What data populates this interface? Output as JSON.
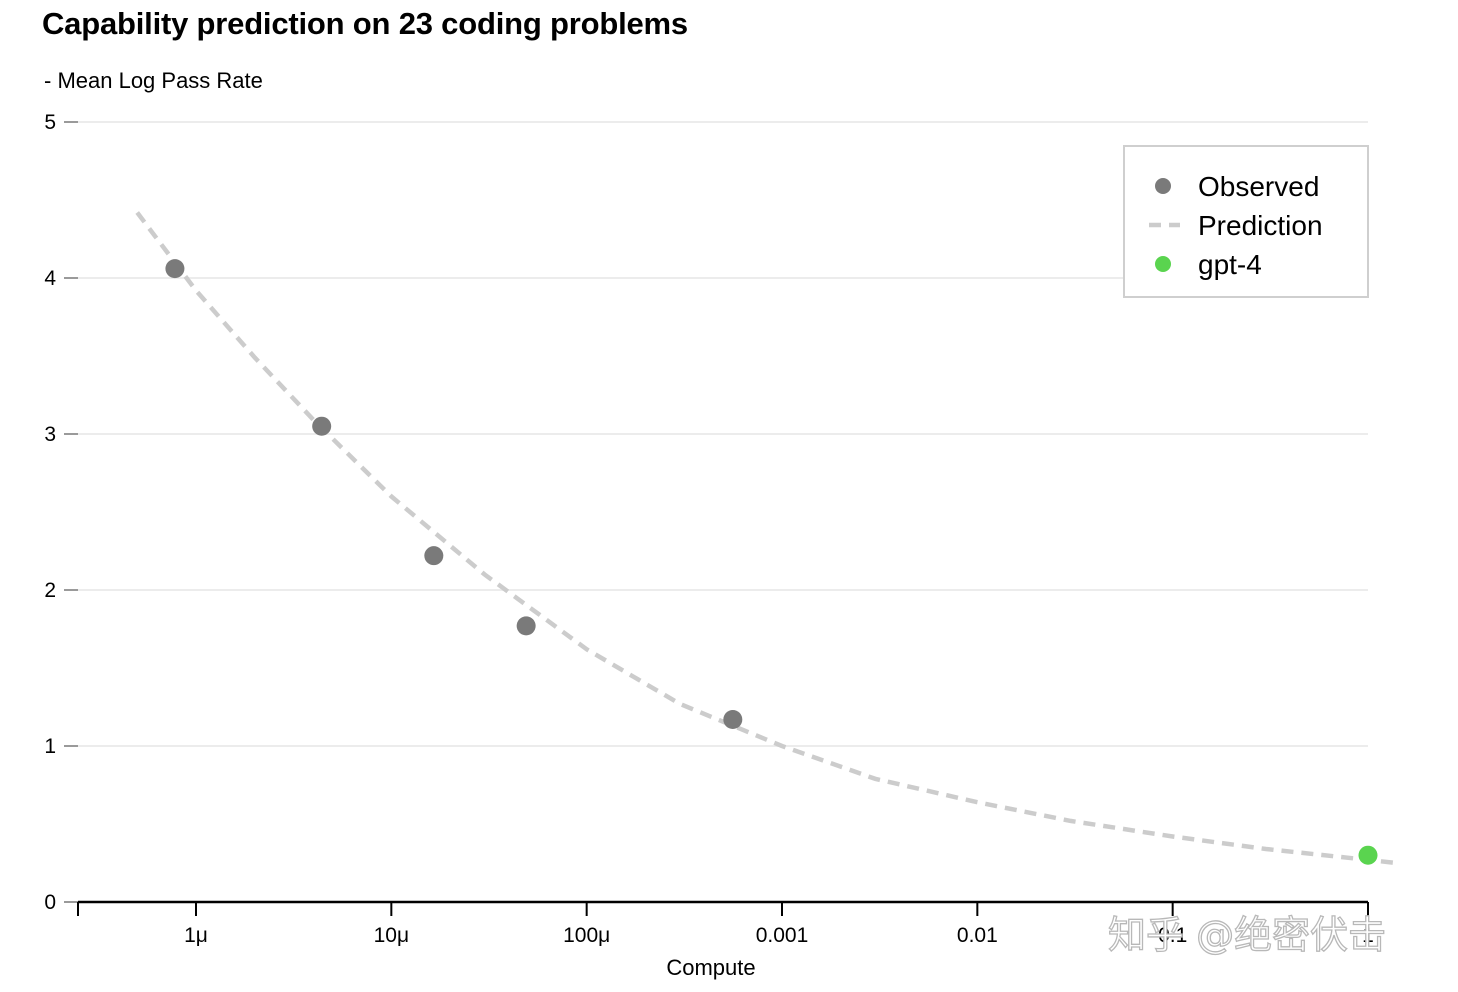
{
  "chart_data": {
    "type": "scatter",
    "title": "Capability prediction on 23 coding problems",
    "ylabel": "- Mean Log Pass Rate",
    "xlabel": "Compute",
    "x_scale": "log",
    "xlim": [
      5e-07,
      1.5
    ],
    "ylim": [
      0,
      5
    ],
    "grid": true,
    "legend_position": "top-right",
    "y_ticks": [
      "0",
      "1",
      "2",
      "3",
      "4",
      "5"
    ],
    "x_ticks": [
      {
        "value": 1e-06,
        "label": "1μ"
      },
      {
        "value": 1e-05,
        "label": "10μ"
      },
      {
        "value": 0.0001,
        "label": "100μ"
      },
      {
        "value": 0.001,
        "label": "0.001"
      },
      {
        "value": 0.01,
        "label": "0.01"
      },
      {
        "value": 0.1,
        "label": "0.1"
      },
      {
        "value": 1,
        "label": "1"
      }
    ],
    "series": [
      {
        "name": "Observed",
        "kind": "scatter",
        "color": "#7a7a7a",
        "x": [
          7.8e-07,
          4.4e-06,
          1.65e-05,
          4.9e-05,
          0.00056
        ],
        "y": [
          4.06,
          3.05,
          2.22,
          1.77,
          1.17
        ]
      },
      {
        "name": "Prediction",
        "kind": "dashed-line",
        "color": "#cccccc",
        "x": [
          5e-07,
          1e-06,
          2e-06,
          4e-06,
          1e-05,
          3e-05,
          0.0001,
          0.0003,
          0.001,
          0.003,
          0.01,
          0.03,
          0.1,
          0.3,
          1,
          1.4
        ],
        "y": [
          4.42,
          3.92,
          3.49,
          3.09,
          2.6,
          2.1,
          1.62,
          1.27,
          1.0,
          0.79,
          0.64,
          0.52,
          0.42,
          0.34,
          0.27,
          0.25
        ]
      },
      {
        "name": "gpt-4",
        "kind": "scatter",
        "color": "#5ad44f",
        "x": [
          1.0
        ],
        "y": [
          0.3
        ]
      }
    ]
  },
  "watermark": "知乎 @绝密伏击"
}
